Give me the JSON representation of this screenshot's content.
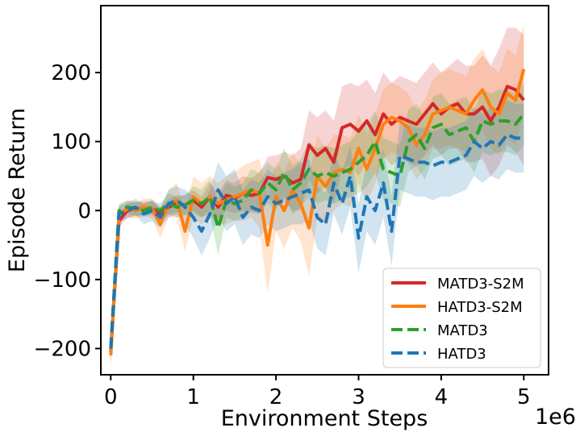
{
  "chart_data": {
    "type": "line",
    "xlabel": "Environment Steps",
    "ylabel": "Episode Return",
    "x_multiplier_label": "1e6",
    "xlim": [
      -0.12,
      5.3
    ],
    "ylim": [
      -238,
      297
    ],
    "xticks": [
      0,
      1,
      2,
      3,
      4,
      5
    ],
    "xtick_labels": [
      "0",
      "1",
      "2",
      "3",
      "4",
      "5"
    ],
    "yticks": [
      -200,
      -100,
      0,
      100,
      200
    ],
    "ytick_labels": [
      "−200",
      "−100",
      "0",
      "100",
      "200"
    ],
    "legend_position": "lower-right",
    "series": [
      {
        "name": "MATD3-S2M",
        "color": "#d62728",
        "dash": "solid",
        "band_color": "#d62728",
        "x": [
          0.0,
          0.1,
          0.2,
          0.3,
          0.4,
          0.5,
          0.6,
          0.7,
          0.8,
          0.9,
          1.0,
          1.1,
          1.2,
          1.3,
          1.4,
          1.5,
          1.6,
          1.7,
          1.8,
          1.9,
          2.0,
          2.1,
          2.2,
          2.3,
          2.4,
          2.5,
          2.6,
          2.7,
          2.8,
          2.9,
          3.0,
          3.1,
          3.2,
          3.3,
          3.4,
          3.5,
          3.6,
          3.7,
          3.8,
          3.9,
          4.0,
          4.1,
          4.2,
          4.3,
          4.4,
          4.5,
          4.6,
          4.7,
          4.8,
          4.9,
          5.0
        ],
        "values": [
          -205,
          -15,
          0,
          2,
          4,
          3,
          -5,
          5,
          10,
          8,
          15,
          5,
          20,
          5,
          22,
          18,
          25,
          22,
          25,
          48,
          45,
          50,
          40,
          45,
          95,
          80,
          90,
          70,
          120,
          125,
          115,
          130,
          110,
          140,
          125,
          135,
          130,
          125,
          140,
          155,
          140,
          150,
          155,
          140,
          140,
          150,
          130,
          150,
          180,
          175,
          160
        ],
        "band": [
          20,
          10,
          10,
          10,
          10,
          10,
          10,
          12,
          12,
          14,
          15,
          15,
          20,
          20,
          22,
          22,
          25,
          25,
          30,
          30,
          35,
          35,
          40,
          45,
          50,
          55,
          55,
          60,
          60,
          60,
          65,
          60,
          60,
          60,
          60,
          60,
          60,
          60,
          60,
          60,
          60,
          60,
          65,
          70,
          70,
          75,
          80,
          85,
          85,
          90,
          95
        ]
      },
      {
        "name": "HATD3-S2M",
        "color": "#ff7f0e",
        "dash": "solid",
        "band_color": "#ff7f0e",
        "x": [
          0.0,
          0.1,
          0.2,
          0.3,
          0.4,
          0.5,
          0.6,
          0.7,
          0.8,
          0.9,
          1.0,
          1.1,
          1.2,
          1.3,
          1.4,
          1.5,
          1.6,
          1.7,
          1.8,
          1.9,
          2.0,
          2.1,
          2.2,
          2.3,
          2.4,
          2.5,
          2.6,
          2.7,
          2.8,
          2.9,
          3.0,
          3.1,
          3.2,
          3.3,
          3.4,
          3.5,
          3.6,
          3.7,
          3.8,
          3.9,
          4.0,
          4.1,
          4.2,
          4.3,
          4.4,
          4.5,
          4.6,
          4.7,
          4.8,
          4.9,
          5.0
        ],
        "values": [
          -210,
          -5,
          2,
          0,
          5,
          3,
          -20,
          10,
          15,
          -30,
          20,
          10,
          20,
          10,
          15,
          20,
          25,
          30,
          25,
          -50,
          20,
          0,
          30,
          10,
          -25,
          50,
          35,
          55,
          60,
          55,
          90,
          60,
          90,
          125,
          135,
          130,
          120,
          95,
          110,
          140,
          145,
          150,
          145,
          140,
          160,
          175,
          150,
          140,
          170,
          160,
          205
        ],
        "band": [
          20,
          12,
          12,
          12,
          12,
          15,
          20,
          20,
          25,
          30,
          30,
          30,
          30,
          30,
          35,
          35,
          40,
          40,
          50,
          70,
          50,
          55,
          55,
          55,
          70,
          60,
          55,
          55,
          50,
          50,
          50,
          50,
          50,
          50,
          50,
          50,
          50,
          50,
          50,
          50,
          55,
          55,
          55,
          55,
          60,
          60,
          60,
          60,
          65,
          65,
          65
        ]
      },
      {
        "name": "MATD3",
        "color": "#2ca02c",
        "dash": "dashed",
        "band_color": "#2ca02c",
        "x": [
          0.0,
          0.1,
          0.2,
          0.3,
          0.4,
          0.5,
          0.6,
          0.7,
          0.8,
          0.9,
          1.0,
          1.1,
          1.2,
          1.3,
          1.4,
          1.5,
          1.6,
          1.7,
          1.8,
          1.9,
          2.0,
          2.1,
          2.2,
          2.3,
          2.4,
          2.5,
          2.6,
          2.7,
          2.8,
          2.9,
          3.0,
          3.1,
          3.2,
          3.3,
          3.4,
          3.5,
          3.6,
          3.7,
          3.8,
          3.9,
          4.0,
          4.1,
          4.2,
          4.3,
          4.4,
          4.5,
          4.6,
          4.7,
          4.8,
          4.9,
          5.0
        ],
        "values": [
          -200,
          0,
          5,
          3,
          0,
          5,
          0,
          10,
          5,
          8,
          15,
          10,
          20,
          -25,
          15,
          10,
          15,
          30,
          25,
          40,
          30,
          55,
          30,
          40,
          60,
          50,
          55,
          50,
          55,
          60,
          70,
          80,
          100,
          60,
          55,
          50,
          100,
          110,
          90,
          120,
          125,
          110,
          115,
          120,
          100,
          130,
          125,
          130,
          130,
          125,
          140
        ],
        "band": [
          15,
          10,
          10,
          10,
          10,
          10,
          10,
          15,
          15,
          15,
          20,
          20,
          25,
          40,
          25,
          25,
          25,
          30,
          30,
          30,
          30,
          35,
          35,
          35,
          40,
          40,
          40,
          40,
          40,
          40,
          45,
          45,
          45,
          45,
          45,
          45,
          45,
          45,
          45,
          45,
          45,
          45,
          45,
          45,
          45,
          45,
          45,
          45,
          45,
          45,
          45
        ]
      },
      {
        "name": "HATD3",
        "color": "#1f77b4",
        "dash": "dashed",
        "band_color": "#1f77b4",
        "x": [
          0.0,
          0.1,
          0.2,
          0.3,
          0.4,
          0.5,
          0.6,
          0.7,
          0.8,
          0.9,
          1.0,
          1.1,
          1.2,
          1.3,
          1.4,
          1.5,
          1.6,
          1.7,
          1.8,
          1.9,
          2.0,
          2.1,
          2.2,
          2.3,
          2.4,
          2.5,
          2.6,
          2.7,
          2.8,
          2.9,
          3.0,
          3.1,
          3.2,
          3.3,
          3.4,
          3.5,
          3.6,
          3.7,
          3.8,
          3.9,
          4.0,
          4.1,
          4.2,
          4.3,
          4.4,
          4.5,
          4.6,
          4.7,
          4.8,
          4.9,
          5.0
        ],
        "values": [
          -200,
          -5,
          0,
          5,
          -5,
          0,
          -10,
          10,
          15,
          5,
          -10,
          -30,
          -5,
          30,
          10,
          20,
          -10,
          5,
          0,
          20,
          10,
          15,
          20,
          25,
          30,
          -10,
          -20,
          40,
          10,
          50,
          -40,
          20,
          0,
          40,
          -30,
          80,
          75,
          70,
          70,
          65,
          70,
          70,
          75,
          80,
          100,
          90,
          100,
          95,
          110,
          105,
          105
        ],
        "band": [
          15,
          12,
          12,
          12,
          15,
          15,
          15,
          20,
          20,
          25,
          30,
          35,
          35,
          40,
          40,
          40,
          40,
          40,
          40,
          40,
          40,
          40,
          40,
          45,
          45,
          45,
          45,
          45,
          45,
          45,
          50,
          50,
          50,
          50,
          50,
          50,
          50,
          50,
          50,
          50,
          50,
          50,
          50,
          50,
          50,
          50,
          50,
          50,
          50,
          50,
          50
        ]
      }
    ]
  }
}
